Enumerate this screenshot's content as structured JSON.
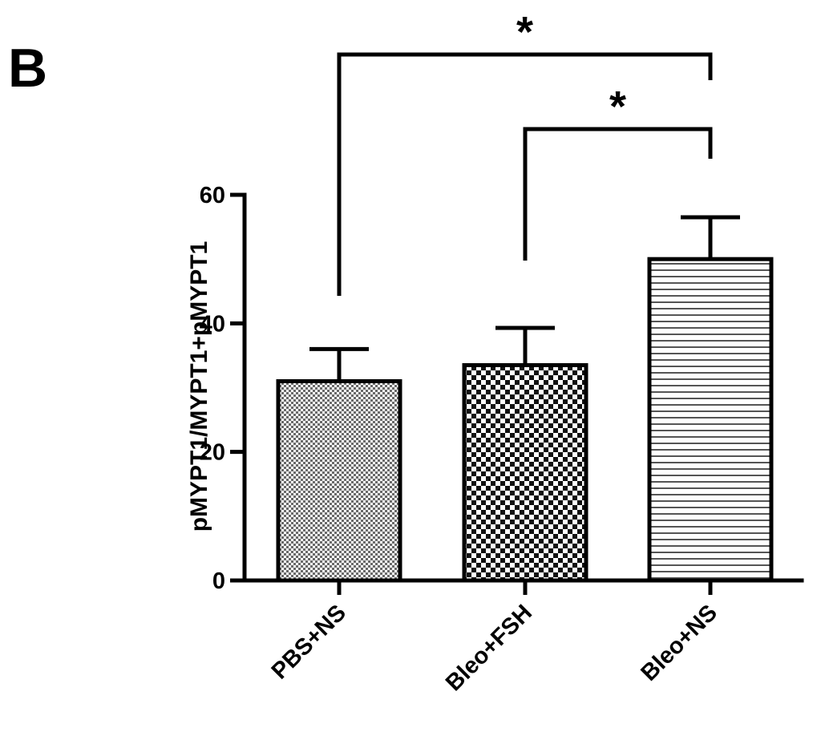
{
  "panel_label": "B",
  "chart_data": {
    "type": "bar",
    "title": "",
    "xlabel": "",
    "ylabel": "pMYPT1/MYPT1+pMYPT1",
    "ylim": [
      0,
      60
    ],
    "yticks": [
      0,
      20,
      40,
      60
    ],
    "categories": [
      "PBS+NS",
      "Bleo+FSH",
      "Bleo+NS"
    ],
    "values": [
      31,
      33.5,
      50
    ],
    "error_upper": [
      36,
      39.3,
      56.5
    ],
    "bar_patterns": [
      "fine-dots",
      "checkerboard",
      "horizontal-stripes"
    ],
    "significance": [
      {
        "from": "PBS+NS",
        "to": "Bleo+NS",
        "label": "*"
      },
      {
        "from": "Bleo+FSH",
        "to": "Bleo+NS",
        "label": "*"
      }
    ],
    "grid": false,
    "legend": "none"
  }
}
